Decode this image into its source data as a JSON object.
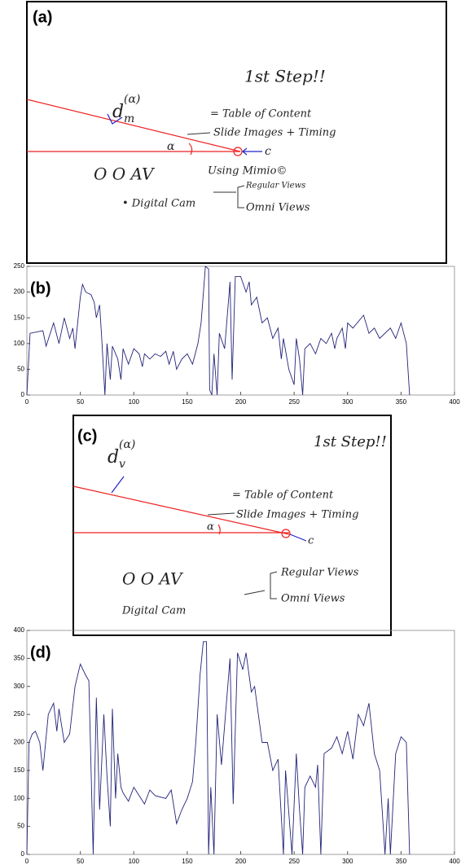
{
  "panels": [
    {
      "label": "(a)",
      "step": "1st Step!!",
      "symbol": "d",
      "sub": "m",
      "sup": "(α)",
      "toc": "= Table of Content",
      "slides": "Slide Images + Timing",
      "mimio": "Using Mimio©",
      "angle": "α",
      "center": "c",
      "av": "O  O  AV",
      "cam": "• Digital Cam",
      "regular": "Regular Views",
      "omni": "Omni Views"
    },
    {
      "label": "(c)",
      "step": "1st Step!!",
      "symbol": "d",
      "sub": "v",
      "sup": "(α)",
      "toc": "= Table of Content",
      "slides": "Slide Images + Timing",
      "angle": "α",
      "center": "c",
      "av": "O  O  AV",
      "cam": "Digital Cam",
      "regular": "Regular Views",
      "omni": "Omni Views"
    }
  ],
  "chart_data": [
    {
      "type": "line",
      "label": "(b)",
      "xlim": [
        0,
        400
      ],
      "ylim": [
        0,
        250
      ],
      "xticks": [
        0,
        50,
        100,
        150,
        200,
        250,
        300,
        350,
        400
      ],
      "yticks": [
        0,
        50,
        100,
        150,
        200,
        250
      ],
      "x": [
        0,
        3,
        15,
        18,
        25,
        30,
        35,
        40,
        43,
        45,
        50,
        52,
        55,
        60,
        63,
        65,
        68,
        70,
        73,
        75,
        78,
        80,
        85,
        88,
        90,
        95,
        100,
        105,
        108,
        110,
        115,
        120,
        125,
        130,
        133,
        137,
        140,
        145,
        150,
        155,
        160,
        163,
        167,
        170,
        171,
        173,
        175,
        178,
        180,
        185,
        190,
        192,
        195,
        200,
        205,
        208,
        210,
        215,
        220,
        225,
        230,
        235,
        238,
        240,
        245,
        250,
        252,
        255,
        258,
        260,
        265,
        270,
        275,
        280,
        285,
        288,
        290,
        295,
        298,
        300,
        305,
        315,
        320,
        325,
        330,
        340,
        345,
        350,
        355,
        358
      ],
      "series": [
        {
          "color": "#23237a",
          "values": [
            0,
            120,
            125,
            95,
            140,
            100,
            150,
            110,
            130,
            90,
            190,
            215,
            200,
            195,
            180,
            150,
            175,
            110,
            0,
            100,
            30,
            95,
            70,
            30,
            90,
            60,
            90,
            80,
            55,
            80,
            70,
            80,
            75,
            85,
            60,
            85,
            50,
            70,
            80,
            60,
            100,
            140,
            250,
            245,
            10,
            0,
            80,
            0,
            120,
            90,
            220,
            30,
            230,
            230,
            200,
            220,
            175,
            190,
            140,
            150,
            110,
            130,
            70,
            110,
            50,
            20,
            110,
            70,
            0,
            90,
            100,
            80,
            110,
            100,
            120,
            90,
            110,
            130,
            90,
            140,
            130,
            155,
            120,
            130,
            110,
            130,
            110,
            140,
            100,
            0
          ]
        }
      ]
    },
    {
      "type": "line",
      "label": "(d)",
      "xlim": [
        0,
        400
      ],
      "ylim": [
        0,
        400
      ],
      "xticks": [
        0,
        50,
        100,
        150,
        200,
        250,
        300,
        350,
        400
      ],
      "yticks": [
        0,
        50,
        100,
        150,
        200,
        250,
        300,
        350,
        400
      ],
      "x": [
        0,
        2,
        5,
        8,
        12,
        15,
        20,
        25,
        28,
        30,
        35,
        40,
        45,
        50,
        55,
        58,
        62,
        65,
        68,
        72,
        75,
        78,
        80,
        83,
        85,
        88,
        90,
        95,
        100,
        105,
        110,
        115,
        120,
        130,
        135,
        140,
        145,
        150,
        155,
        158,
        162,
        165,
        168,
        170,
        172,
        175,
        178,
        182,
        190,
        193,
        197,
        202,
        205,
        210,
        213,
        220,
        225,
        230,
        235,
        240,
        242,
        248,
        252,
        255,
        258,
        260,
        265,
        270,
        272,
        275,
        278,
        285,
        290,
        295,
        300,
        305,
        310,
        315,
        320,
        325,
        330,
        335,
        338,
        340,
        345,
        350,
        355,
        358
      ],
      "series": [
        {
          "color": "#23237a",
          "values": [
            0,
            200,
            215,
            220,
            200,
            150,
            250,
            270,
            220,
            260,
            200,
            215,
            300,
            340,
            320,
            310,
            0,
            280,
            80,
            250,
            140,
            50,
            260,
            100,
            180,
            120,
            110,
            95,
            120,
            105,
            90,
            115,
            105,
            100,
            115,
            55,
            80,
            100,
            130,
            200,
            320,
            380,
            380,
            0,
            120,
            0,
            250,
            160,
            350,
            90,
            360,
            330,
            360,
            290,
            300,
            200,
            200,
            150,
            170,
            0,
            150,
            0,
            180,
            80,
            0,
            120,
            140,
            120,
            160,
            0,
            180,
            190,
            210,
            180,
            220,
            170,
            250,
            230,
            270,
            180,
            150,
            0,
            100,
            0,
            180,
            210,
            200,
            0
          ]
        }
      ]
    }
  ]
}
